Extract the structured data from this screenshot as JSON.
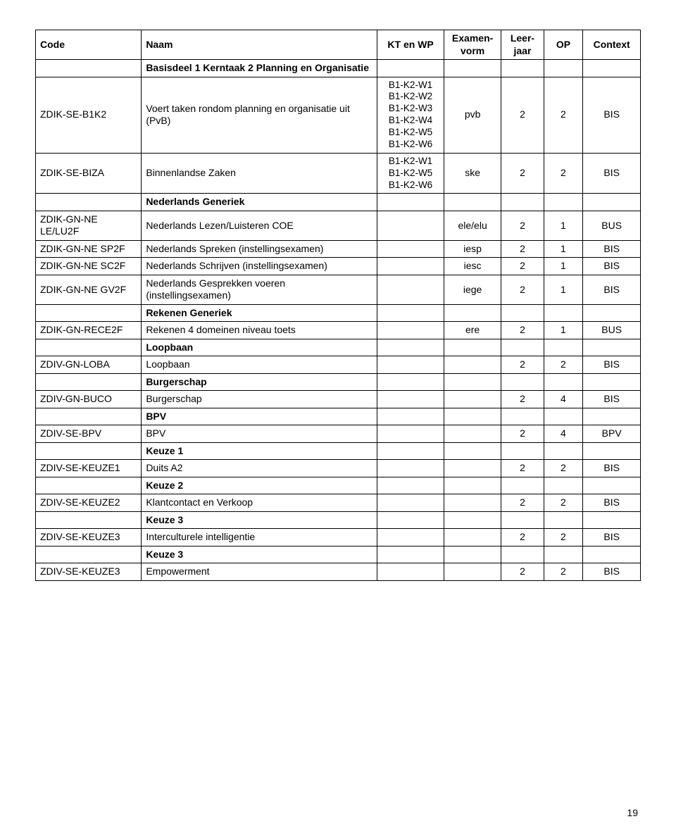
{
  "header": {
    "code": "Code",
    "naam": "Naam",
    "kt": "KT en WP",
    "examvorm_l1": "Examen-",
    "examvorm_l2": "vorm",
    "leerjaar_l1": "Leer-",
    "leerjaar_l2": "jaar",
    "op": "OP",
    "context": "Context"
  },
  "r1": {
    "naam": "Basisdeel 1 Kerntaak 2 Planning en Organisatie"
  },
  "r2": {
    "code": "ZDIK-SE-B1K2",
    "naam": "Voert taken rondom planning en organisatie uit (PvB)",
    "kt1": "B1-K2-W1",
    "kt2": "B1-K2-W2",
    "kt3": "B1-K2-W3",
    "kt4": "B1-K2-W4",
    "kt5": "B1-K2-W5",
    "kt6": "B1-K2-W6",
    "exam": "pvb",
    "leer": "2",
    "op": "2",
    "ctx": "BIS"
  },
  "r3": {
    "code": "ZDIK-SE-BIZA",
    "naam": "Binnenlandse Zaken",
    "kt1": "B1-K2-W1",
    "kt2": "B1-K2-W5",
    "kt3": "B1-K2-W6",
    "exam": "ske",
    "leer": "2",
    "op": "2",
    "ctx": "BIS"
  },
  "r4": {
    "naam": "Nederlands Generiek"
  },
  "r5": {
    "code": "ZDIK-GN-NE LE/LU2F",
    "naam": "Nederlands Lezen/Luisteren COE",
    "exam": "ele/elu",
    "leer": "2",
    "op": "1",
    "ctx": "BUS"
  },
  "r6": {
    "code": "ZDIK-GN-NE SP2F",
    "naam": "Nederlands Spreken (instellingsexamen)",
    "exam": "iesp",
    "leer": "2",
    "op": "1",
    "ctx": "BIS"
  },
  "r7": {
    "code": "ZDIK-GN-NE SC2F",
    "naam": "Nederlands Schrijven (instellingsexamen)",
    "exam": "iesc",
    "leer": "2",
    "op": "1",
    "ctx": "BIS"
  },
  "r8": {
    "code": "ZDIK-GN-NE GV2F",
    "naam": "Nederlands Gesprekken voeren (instellingsexamen)",
    "exam": "iege",
    "leer": "2",
    "op": "1",
    "ctx": "BIS"
  },
  "r9": {
    "naam": "Rekenen Generiek"
  },
  "r10": {
    "code": "ZDIK-GN-RECE2F",
    "naam": "Rekenen 4 domeinen niveau toets",
    "exam": "ere",
    "leer": "2",
    "op": "1",
    "ctx": "BUS"
  },
  "r11": {
    "naam": "Loopbaan"
  },
  "r12": {
    "code": "ZDIV-GN-LOBA",
    "naam": "Loopbaan",
    "leer": "2",
    "op": "2",
    "ctx": "BIS"
  },
  "r13": {
    "naam": "Burgerschap"
  },
  "r14": {
    "code": "ZDIV-GN-BUCO",
    "naam": "Burgerschap",
    "leer": "2",
    "op": "4",
    "ctx": "BIS"
  },
  "r15": {
    "naam": "BPV"
  },
  "r16": {
    "code": "ZDIV-SE-BPV",
    "naam": "BPV",
    "leer": "2",
    "op": "4",
    "ctx": "BPV"
  },
  "r17": {
    "naam": "Keuze 1"
  },
  "r18": {
    "code": "ZDIV-SE-KEUZE1",
    "naam": "Duits A2",
    "leer": "2",
    "op": "2",
    "ctx": "BIS"
  },
  "r19": {
    "naam": "Keuze 2"
  },
  "r20": {
    "code": "ZDIV-SE-KEUZE2",
    "naam": "Klantcontact en Verkoop",
    "leer": "2",
    "op": "2",
    "ctx": "BIS"
  },
  "r21": {
    "naam": "Keuze 3"
  },
  "r22": {
    "code": "ZDIV-SE-KEUZE3",
    "naam": "Interculturele intelligentie",
    "leer": "2",
    "op": "2",
    "ctx": "BIS"
  },
  "r23": {
    "naam": "Keuze 3"
  },
  "r24": {
    "code": "ZDIV-SE-KEUZE3",
    "naam": "Empowerment",
    "leer": "2",
    "op": "2",
    "ctx": "BIS"
  },
  "page_number": "19"
}
